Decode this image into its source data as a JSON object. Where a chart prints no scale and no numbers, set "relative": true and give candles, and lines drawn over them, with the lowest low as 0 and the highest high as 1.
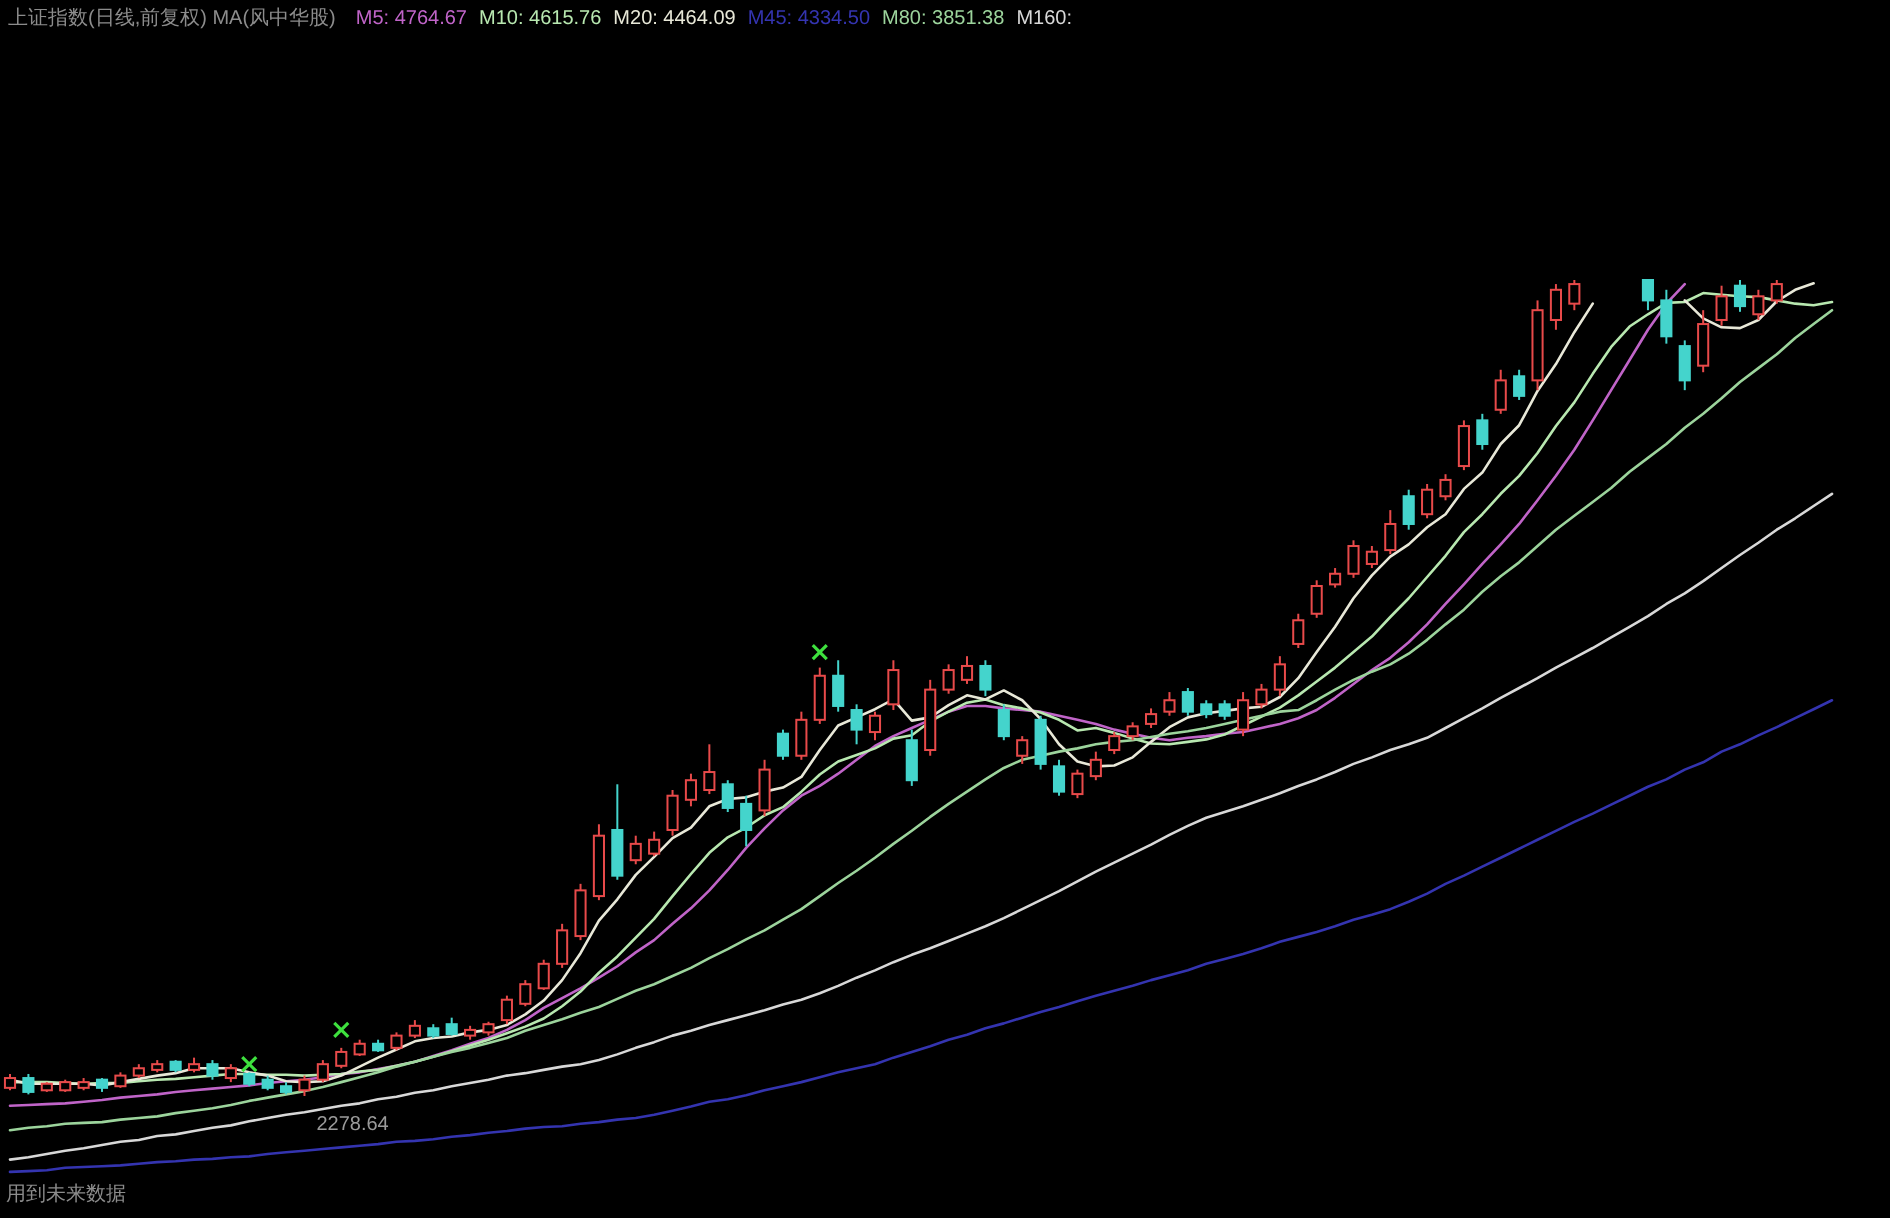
{
  "chart_data": {
    "type": "candlestick",
    "relative": true,
    "title": "上证指数(日线,前复权) MA(风中华股)",
    "legend": "top left",
    "categories": [
      null,
      null,
      null,
      null,
      null,
      null,
      null,
      null,
      null,
      null,
      null,
      null,
      null,
      null,
      null,
      null,
      null,
      null,
      null,
      null,
      null,
      null,
      null,
      null,
      null,
      null,
      null,
      null,
      null,
      null,
      null,
      null,
      null,
      null,
      null,
      null,
      null,
      null,
      null,
      null,
      null,
      null,
      null,
      null,
      null,
      null,
      null,
      null,
      null,
      null,
      null,
      null,
      null,
      null,
      null,
      null,
      null,
      null,
      null,
      null,
      null,
      null,
      null,
      null,
      null,
      null,
      null,
      null,
      null,
      null,
      null,
      null,
      null,
      null,
      null,
      null,
      null,
      null,
      null,
      null,
      null,
      null,
      null,
      null,
      null,
      null,
      null,
      null,
      null,
      null,
      null,
      null,
      null,
      null,
      null,
      null,
      null,
      null,
      null,
      null
    ],
    "ohlc": [
      [
        0.01,
        0.027,
        0.007,
        0.022
      ],
      [
        0.022,
        0.027,
        0.002,
        0.005
      ],
      [
        0.007,
        0.017,
        0.005,
        0.015
      ],
      [
        0.007,
        0.02,
        0.005,
        0.017
      ],
      [
        0.01,
        0.022,
        0.007,
        0.017
      ],
      [
        0.02,
        0.022,
        0.005,
        0.01
      ],
      [
        0.012,
        0.029,
        0.01,
        0.025
      ],
      [
        0.025,
        0.039,
        0.022,
        0.034
      ],
      [
        0.032,
        0.044,
        0.029,
        0.039
      ],
      [
        0.042,
        0.044,
        0.029,
        0.032
      ],
      [
        0.032,
        0.047,
        0.029,
        0.039
      ],
      [
        0.039,
        0.044,
        0.02,
        0.025
      ],
      [
        0.022,
        0.039,
        0.017,
        0.034
      ],
      [
        0.027,
        0.029,
        0.012,
        0.015
      ],
      [
        0.02,
        0.025,
        0.007,
        0.01
      ],
      [
        0.012,
        0.017,
        0.002,
        0.005
      ],
      [
        0.007,
        0.025,
        0.0,
        0.02
      ],
      [
        0.02,
        0.044,
        0.017,
        0.039
      ],
      [
        0.037,
        0.059,
        0.034,
        0.054
      ],
      [
        0.051,
        0.069,
        0.049,
        0.064
      ],
      [
        0.064,
        0.069,
        0.054,
        0.056
      ],
      [
        0.059,
        0.078,
        0.056,
        0.074
      ],
      [
        0.074,
        0.093,
        0.071,
        0.086
      ],
      [
        0.083,
        0.088,
        0.071,
        0.074
      ],
      [
        0.088,
        0.096,
        0.074,
        0.076
      ],
      [
        0.074,
        0.086,
        0.069,
        0.081
      ],
      [
        0.078,
        0.091,
        0.074,
        0.088
      ],
      [
        0.093,
        0.123,
        0.088,
        0.118
      ],
      [
        0.113,
        0.142,
        0.11,
        0.137
      ],
      [
        0.132,
        0.167,
        0.13,
        0.162
      ],
      [
        0.162,
        0.211,
        0.157,
        0.203
      ],
      [
        0.196,
        0.26,
        0.191,
        0.252
      ],
      [
        0.245,
        0.333,
        0.24,
        0.319
      ],
      [
        0.326,
        0.382,
        0.265,
        0.27
      ],
      [
        0.289,
        0.319,
        0.284,
        0.309
      ],
      [
        0.297,
        0.324,
        0.294,
        0.314
      ],
      [
        0.326,
        0.375,
        0.319,
        0.368
      ],
      [
        0.363,
        0.395,
        0.355,
        0.387
      ],
      [
        0.375,
        0.431,
        0.37,
        0.397
      ],
      [
        0.382,
        0.387,
        0.348,
        0.353
      ],
      [
        0.358,
        0.368,
        0.306,
        0.326
      ],
      [
        0.35,
        0.412,
        0.343,
        0.4
      ],
      [
        0.444,
        0.449,
        0.412,
        0.417
      ],
      [
        0.417,
        0.471,
        0.412,
        0.461
      ],
      [
        0.461,
        0.525,
        0.456,
        0.515
      ],
      [
        0.515,
        0.534,
        0.471,
        0.478
      ],
      [
        0.473,
        0.48,
        0.431,
        0.449
      ],
      [
        0.446,
        0.471,
        0.436,
        0.466
      ],
      [
        0.48,
        0.534,
        0.473,
        0.522
      ],
      [
        0.436,
        0.449,
        0.38,
        0.387
      ],
      [
        0.424,
        0.51,
        0.417,
        0.498
      ],
      [
        0.498,
        0.529,
        0.493,
        0.522
      ],
      [
        0.51,
        0.539,
        0.505,
        0.527
      ],
      [
        0.527,
        0.534,
        0.49,
        0.498
      ],
      [
        0.473,
        0.48,
        0.436,
        0.441
      ],
      [
        0.417,
        0.441,
        0.407,
        0.436
      ],
      [
        0.461,
        0.466,
        0.4,
        0.407
      ],
      [
        0.404,
        0.412,
        0.368,
        0.373
      ],
      [
        0.37,
        0.4,
        0.365,
        0.395
      ],
      [
        0.392,
        0.422,
        0.387,
        0.412
      ],
      [
        0.424,
        0.446,
        0.419,
        0.441
      ],
      [
        0.441,
        0.458,
        0.436,
        0.453
      ],
      [
        0.456,
        0.475,
        0.451,
        0.468
      ],
      [
        0.471,
        0.495,
        0.466,
        0.485
      ],
      [
        0.495,
        0.5,
        0.466,
        0.471
      ],
      [
        0.48,
        0.485,
        0.463,
        0.468
      ],
      [
        0.48,
        0.485,
        0.461,
        0.466
      ],
      [
        0.449,
        0.495,
        0.441,
        0.485
      ],
      [
        0.48,
        0.505,
        0.475,
        0.498
      ],
      [
        0.498,
        0.539,
        0.49,
        0.529
      ],
      [
        0.554,
        0.591,
        0.549,
        0.583
      ],
      [
        0.591,
        0.632,
        0.586,
        0.625
      ],
      [
        0.627,
        0.647,
        0.623,
        0.64
      ],
      [
        0.64,
        0.681,
        0.635,
        0.674
      ],
      [
        0.652,
        0.674,
        0.647,
        0.667
      ],
      [
        0.669,
        0.718,
        0.664,
        0.701
      ],
      [
        0.735,
        0.743,
        0.694,
        0.701
      ],
      [
        0.713,
        0.75,
        0.708,
        0.743
      ],
      [
        0.735,
        0.762,
        0.73,
        0.755
      ],
      [
        0.772,
        0.828,
        0.767,
        0.821
      ],
      [
        0.828,
        0.836,
        0.792,
        0.799
      ],
      [
        0.841,
        0.89,
        0.836,
        0.877
      ],
      [
        0.882,
        0.89,
        0.853,
        0.858
      ],
      [
        0.877,
        0.975,
        0.865,
        0.963
      ],
      [
        0.951,
        0.995,
        0.939,
        0.988
      ],
      [
        0.971,
        1.0,
        0.963,
        0.995
      ],
      null,
      null,
      null,
      [
        1.0,
        1.0,
        0.963,
        0.975
      ],
      [
        0.975,
        0.988,
        0.922,
        0.931
      ],
      [
        0.919,
        0.926,
        0.865,
        0.877
      ],
      [
        0.895,
        0.963,
        0.887,
        0.946
      ],
      [
        0.951,
        0.993,
        0.944,
        0.98
      ],
      [
        0.993,
        1.0,
        0.961,
        0.968
      ],
      [
        0.958,
        0.988,
        0.951,
        0.98
      ],
      [
        0.975,
        1.0,
        0.971,
        0.995
      ],
      null,
      null,
      null
    ],
    "colors": [
      "#e84a4a",
      "#44d4cc",
      "#e84a4a",
      "#e84a4a",
      "#e84a4a",
      "#44d4cc",
      "#e84a4a",
      "#e84a4a",
      "#e84a4a",
      "#44d4cc",
      "#e84a4a",
      "#44d4cc",
      "#e84a4a",
      "#44d4cc",
      "#44d4cc",
      "#44d4cc",
      "#e84a4a",
      "#e84a4a",
      "#e84a4a",
      "#e84a4a",
      "#44d4cc",
      "#e84a4a",
      "#e84a4a",
      "#44d4cc",
      "#44d4cc",
      "#e84a4a",
      "#e84a4a",
      "#e84a4a",
      "#e84a4a",
      "#e84a4a",
      "#e84a4a",
      "#e84a4a",
      "#e84a4a",
      "#44d4cc",
      "#e84a4a",
      "#e84a4a",
      "#e84a4a",
      "#e84a4a",
      "#e84a4a",
      "#44d4cc",
      "#44d4cc",
      "#e84a4a",
      "#44d4cc",
      "#e84a4a",
      "#e84a4a",
      "#44d4cc",
      "#44d4cc",
      "#e84a4a",
      "#e84a4a",
      "#44d4cc",
      "#e84a4a",
      "#e84a4a",
      "#e84a4a",
      "#44d4cc",
      "#44d4cc",
      "#e84a4a",
      "#44d4cc",
      "#44d4cc",
      "#e84a4a",
      "#e84a4a",
      "#e84a4a",
      "#e84a4a",
      "#e84a4a",
      "#e84a4a",
      "#44d4cc",
      "#44d4cc",
      "#44d4cc",
      "#e84a4a",
      "#e84a4a",
      "#e84a4a",
      "#e84a4a",
      "#e84a4a",
      "#e84a4a",
      "#e84a4a",
      "#e84a4a",
      "#e84a4a",
      "#44d4cc",
      "#e84a4a",
      "#e84a4a",
      "#e84a4a",
      "#44d4cc",
      "#e84a4a",
      "#44d4cc",
      "#e84a4a",
      "#e84a4a",
      "#e84a4a",
      null,
      null,
      null,
      "#44d4cc",
      "#44d4cc",
      "#44d4cc",
      "#e84a4a",
      "#e84a4a",
      "#44d4cc",
      "#e84a4a",
      "#e84a4a",
      null,
      null,
      null
    ],
    "series": [
      {
        "type": "line",
        "name": "M5: 4764.67",
        "color": "#c064c8",
        "values": [
          -0.012,
          -0.011,
          -0.01,
          -0.009,
          -0.007,
          -0.005,
          -0.002,
          0.0,
          0.002,
          0.005,
          0.007,
          0.009,
          0.011,
          0.013,
          0.016,
          0.018,
          0.02,
          0.023,
          0.027,
          0.029,
          0.033,
          0.037,
          0.042,
          0.049,
          0.056,
          0.064,
          0.071,
          0.081,
          0.093,
          0.108,
          0.12,
          0.132,
          0.145,
          0.159,
          0.176,
          0.191,
          0.211,
          0.23,
          0.252,
          0.277,
          0.304,
          0.328,
          0.35,
          0.368,
          0.38,
          0.395,
          0.412,
          0.429,
          0.441,
          0.451,
          0.461,
          0.471,
          0.478,
          0.478,
          0.475,
          0.473,
          0.471,
          0.466,
          0.461,
          0.456,
          0.449,
          0.444,
          0.439,
          0.436,
          0.439,
          0.441,
          0.444,
          0.446,
          0.451,
          0.456,
          0.463,
          0.473,
          0.488,
          0.505,
          0.522,
          0.537,
          0.556,
          0.578,
          0.603,
          0.627,
          0.652,
          0.676,
          0.701,
          0.73,
          0.76,
          0.792,
          0.828,
          0.865,
          0.902,
          0.939,
          0.971,
          0.995,
          null,
          null,
          null,
          null,
          null,
          null,
          null,
          null
        ]
      },
      {
        "type": "line",
        "name": "M10: 4615.76",
        "color": "#b8e8b0",
        "values": [
          0.017,
          0.017,
          0.017,
          0.016,
          0.015,
          0.016,
          0.016,
          0.018,
          0.02,
          0.021,
          0.023,
          0.025,
          0.027,
          0.027,
          0.026,
          0.026,
          0.025,
          0.026,
          0.027,
          0.03,
          0.032,
          0.037,
          0.042,
          0.048,
          0.055,
          0.062,
          0.069,
          0.077,
          0.085,
          0.095,
          0.11,
          0.128,
          0.151,
          0.171,
          0.194,
          0.217,
          0.245,
          0.272,
          0.298,
          0.317,
          0.329,
          0.344,
          0.354,
          0.373,
          0.394,
          0.41,
          0.418,
          0.426,
          0.438,
          0.442,
          0.459,
          0.471,
          0.482,
          0.486,
          0.479,
          0.475,
          0.47,
          0.461,
          0.448,
          0.451,
          0.445,
          0.438,
          0.432,
          0.431,
          0.434,
          0.437,
          0.443,
          0.454,
          0.465,
          0.476,
          0.491,
          0.508,
          0.525,
          0.544,
          0.563,
          0.587,
          0.61,
          0.636,
          0.662,
          0.691,
          0.713,
          0.738,
          0.76,
          0.788,
          0.821,
          0.85,
          0.885,
          0.918,
          0.943,
          0.958,
          0.972,
          0.973,
          0.984,
          0.982,
          0.98,
          0.979,
          0.975,
          0.971,
          0.969,
          0.973
        ]
      },
      {
        "type": "line",
        "name": "M20: 4464.09",
        "color": "#e8e8d8",
        "values": [
          0.02,
          0.015,
          0.015,
          0.015,
          0.015,
          0.013,
          0.017,
          0.021,
          0.025,
          0.028,
          0.034,
          0.034,
          0.034,
          0.029,
          0.025,
          0.018,
          0.017,
          0.018,
          0.025,
          0.036,
          0.047,
          0.057,
          0.067,
          0.071,
          0.073,
          0.078,
          0.081,
          0.087,
          0.1,
          0.117,
          0.142,
          0.175,
          0.215,
          0.241,
          0.271,
          0.293,
          0.316,
          0.329,
          0.355,
          0.364,
          0.366,
          0.373,
          0.378,
          0.391,
          0.424,
          0.454,
          0.464,
          0.474,
          0.486,
          0.46,
          0.464,
          0.479,
          0.491,
          0.486,
          0.497,
          0.485,
          0.462,
          0.431,
          0.41,
          0.404,
          0.405,
          0.415,
          0.434,
          0.452,
          0.464,
          0.469,
          0.472,
          0.475,
          0.477,
          0.489,
          0.512,
          0.544,
          0.575,
          0.61,
          0.638,
          0.661,
          0.676,
          0.697,
          0.713,
          0.744,
          0.764,
          0.799,
          0.822,
          0.864,
          0.897,
          0.936,
          0.971,
          null,
          null,
          null,
          null,
          0.975,
          0.953,
          0.942,
          0.941,
          0.951,
          0.974,
          0.988,
          0.996,
          null
        ]
      },
      {
        "type": "line",
        "name": "M45: 4334.50",
        "color": "#3434b0",
        "values": [
          -0.093,
          -0.092,
          -0.091,
          -0.088,
          -0.087,
          -0.086,
          -0.085,
          -0.083,
          -0.081,
          -0.08,
          -0.078,
          -0.077,
          -0.075,
          -0.074,
          -0.071,
          -0.069,
          -0.067,
          -0.065,
          -0.063,
          -0.061,
          -0.059,
          -0.056,
          -0.055,
          -0.053,
          -0.05,
          -0.048,
          -0.045,
          -0.043,
          -0.04,
          -0.038,
          -0.037,
          -0.034,
          -0.032,
          -0.029,
          -0.027,
          -0.023,
          -0.018,
          -0.013,
          -0.007,
          -0.004,
          0.001,
          0.007,
          0.012,
          0.017,
          0.023,
          0.029,
          0.034,
          0.039,
          0.047,
          0.054,
          0.061,
          0.069,
          0.075,
          0.083,
          0.089,
          0.096,
          0.103,
          0.109,
          0.116,
          0.123,
          0.129,
          0.135,
          0.142,
          0.148,
          0.154,
          0.162,
          0.168,
          0.174,
          0.181,
          0.189,
          0.195,
          0.201,
          0.208,
          0.216,
          0.222,
          0.229,
          0.238,
          0.248,
          0.26,
          0.27,
          0.281,
          0.292,
          0.303,
          0.314,
          0.325,
          0.336,
          0.346,
          0.357,
          0.368,
          0.379,
          0.388,
          0.4,
          0.409,
          0.422,
          0.431,
          0.442,
          0.452,
          0.463,
          0.474,
          0.485
        ]
      },
      {
        "type": "line",
        "name": "M80: 3851.38",
        "color": "#9cd49c",
        "values": [
          -0.042,
          -0.039,
          -0.037,
          -0.034,
          -0.033,
          -0.032,
          -0.029,
          -0.027,
          -0.025,
          -0.021,
          -0.018,
          -0.015,
          -0.011,
          -0.006,
          -0.002,
          0.002,
          0.006,
          0.011,
          0.017,
          0.023,
          0.029,
          0.036,
          0.042,
          0.048,
          0.054,
          0.059,
          0.065,
          0.071,
          0.08,
          0.087,
          0.094,
          0.102,
          0.109,
          0.119,
          0.129,
          0.137,
          0.147,
          0.157,
          0.169,
          0.18,
          0.192,
          0.203,
          0.216,
          0.229,
          0.245,
          0.261,
          0.276,
          0.292,
          0.309,
          0.325,
          0.342,
          0.358,
          0.373,
          0.388,
          0.402,
          0.412,
          0.417,
          0.422,
          0.426,
          0.431,
          0.434,
          0.436,
          0.44,
          0.444,
          0.447,
          0.451,
          0.456,
          0.461,
          0.466,
          0.471,
          0.473,
          0.485,
          0.498,
          0.51,
          0.52,
          0.529,
          0.542,
          0.559,
          0.578,
          0.596,
          0.618,
          0.637,
          0.654,
          0.674,
          0.694,
          0.711,
          0.728,
          0.745,
          0.765,
          0.782,
          0.799,
          0.819,
          0.836,
          0.855,
          0.875,
          0.892,
          0.909,
          0.929,
          0.946,
          0.963
        ]
      },
      {
        "type": "line",
        "name": "M160:",
        "color": "#d8d8d8",
        "values": [
          -0.078,
          -0.075,
          -0.071,
          -0.067,
          -0.064,
          -0.06,
          -0.056,
          -0.054,
          -0.049,
          -0.047,
          -0.043,
          -0.039,
          -0.036,
          -0.031,
          -0.027,
          -0.023,
          -0.02,
          -0.016,
          -0.012,
          -0.009,
          -0.004,
          -0.001,
          0.004,
          0.007,
          0.012,
          0.016,
          0.02,
          0.025,
          0.028,
          0.032,
          0.036,
          0.039,
          0.044,
          0.051,
          0.059,
          0.066,
          0.074,
          0.08,
          0.087,
          0.093,
          0.099,
          0.105,
          0.112,
          0.118,
          0.126,
          0.135,
          0.145,
          0.154,
          0.164,
          0.173,
          0.181,
          0.19,
          0.199,
          0.208,
          0.218,
          0.229,
          0.24,
          0.251,
          0.263,
          0.275,
          0.286,
          0.297,
          0.308,
          0.32,
          0.331,
          0.341,
          0.348,
          0.355,
          0.363,
          0.371,
          0.38,
          0.388,
          0.397,
          0.407,
          0.415,
          0.424,
          0.431,
          0.439,
          0.451,
          0.463,
          0.475,
          0.488,
          0.5,
          0.512,
          0.525,
          0.537,
          0.549,
          0.562,
          0.575,
          0.588,
          0.603,
          0.616,
          0.631,
          0.647,
          0.663,
          0.678,
          0.694,
          0.708,
          0.723,
          0.738
        ]
      },
      {
        "type": "scatter",
        "marker": "cross",
        "color": "#3ee03e",
        "values": [
          null,
          null,
          null,
          null,
          null,
          null,
          null,
          null,
          null,
          null,
          null,
          null,
          null,
          0.039,
          null,
          null,
          null,
          null,
          0.081,
          null,
          null,
          null,
          null,
          null,
          null,
          null,
          null,
          null,
          null,
          null,
          null,
          null,
          null,
          null,
          null,
          null,
          null,
          null,
          null,
          null,
          null,
          null,
          null,
          null,
          0.544,
          null,
          null,
          null,
          null,
          null,
          null,
          null,
          null,
          null,
          null,
          null,
          null,
          null,
          null,
          null,
          null,
          null,
          null,
          null,
          null,
          null,
          null,
          null,
          null,
          null,
          null,
          null,
          null,
          null,
          null,
          null,
          null,
          null,
          null,
          null,
          null,
          null,
          null,
          null,
          null,
          null,
          null,
          null,
          null,
          null,
          null,
          null,
          null,
          null,
          null,
          null,
          null,
          null,
          null,
          null
        ]
      }
    ],
    "annotations": [
      {
        "text": "2278.64",
        "y": 0.0
      },
      "用到未来数据"
    ]
  }
}
